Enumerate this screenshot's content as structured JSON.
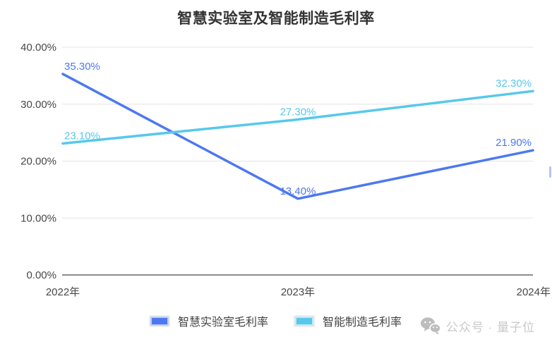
{
  "title": "智慧实验室及智能制造毛利率",
  "chart_data": {
    "type": "line",
    "title": "智慧实验室及智能制造毛利率",
    "categories": [
      "2022年",
      "2023年",
      "2024年"
    ],
    "series": [
      {
        "name": "智慧实验室毛利率",
        "color": "#4d78f0",
        "values": [
          35.3,
          13.4,
          21.9
        ],
        "point_labels": [
          "35.30%",
          "13.40%",
          "21.90%"
        ]
      },
      {
        "name": "智能制造毛利率",
        "color": "#56c8ec",
        "values": [
          23.1,
          27.3,
          32.3
        ],
        "point_labels": [
          "23.10%",
          "27.30%",
          "32.30%"
        ]
      }
    ],
    "ylim": [
      0,
      40
    ],
    "yticks": [
      {
        "value": 0,
        "label": "0.00%"
      },
      {
        "value": 10,
        "label": "10.00%"
      },
      {
        "value": 20,
        "label": "20.00%"
      },
      {
        "value": 30,
        "label": "30.00%"
      },
      {
        "value": 40,
        "label": "40.00%"
      }
    ],
    "grid": true,
    "legend_position": "bottom"
  },
  "colors": {
    "grid": "#e4e4e4",
    "axis": "#666666",
    "tick_text": "#474747",
    "title_text": "#333333",
    "legend_text": "#434343",
    "watermark": "#c4c4c4"
  },
  "watermark": {
    "icon": "wechat-icon",
    "text": "公众号 · 量子位"
  }
}
